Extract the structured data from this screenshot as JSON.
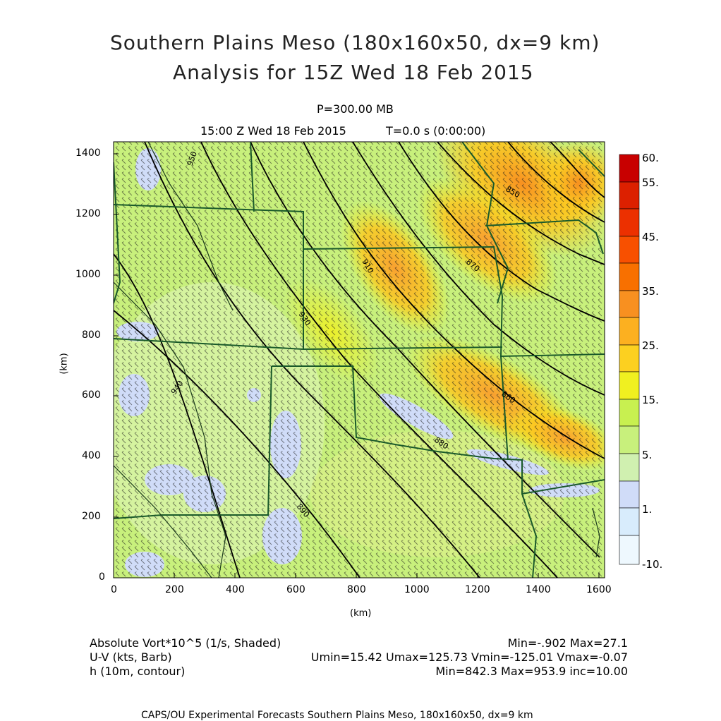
{
  "title_line1": "Southern Plains Meso (180x160x50, dx=9 km)",
  "title_line2": "Analysis for 15Z Wed 18 Feb 2015",
  "level": "P=300.00 MB",
  "time": "15:00 Z Wed 18 Feb 2015",
  "integration": "T=0.0 s (0:00:00)",
  "x_label": "(km)",
  "y_label": "(km)",
  "x_ticks": [
    "0",
    "200",
    "400",
    "600",
    "800",
    "1000",
    "1200",
    "1400",
    "1600"
  ],
  "y_ticks": [
    "0",
    "200",
    "400",
    "600",
    "800",
    "1000",
    "1200",
    "1400"
  ],
  "colorbar": {
    "labels": [
      "60.",
      "55.",
      "45.",
      "35.",
      "25.",
      "15.",
      "5.",
      "1.",
      "-10."
    ],
    "colors": [
      "#c80000",
      "#dc2000",
      "#f04000",
      "#f87000",
      "#f89020",
      "#fcc820",
      "#f0f020",
      "#c8f050",
      "#d0f0b0",
      "#d0dcf8",
      "#d8ecfc",
      "#eef8fe"
    ]
  },
  "fields": [
    {
      "name": "Absolute Vort*10^5 (1/s, Shaded)",
      "stats": "Min=-.902 Max=27.1"
    },
    {
      "name": "U-V (kts, Barb)",
      "stats": "Umin=15.42 Umax=125.73 Vmin=-125.01 Vmax=-0.07"
    },
    {
      "name": "h (10m, contour)",
      "stats": "Min=842.3 Max=953.9 inc=10.00"
    }
  ],
  "contour_labels": [
    "950",
    "940",
    "930",
    "910",
    "890",
    "880",
    "870",
    "860",
    "850"
  ],
  "footer": "CAPS/OU Experimental Forecasts  Southern Plains Meso, 180x160x50, dx=9 km",
  "colors": {
    "background_field": "#c8f07c",
    "border_lines": "#1a5a2a",
    "contour_lines": "#000000",
    "barbs": "#1a1a1a"
  }
}
